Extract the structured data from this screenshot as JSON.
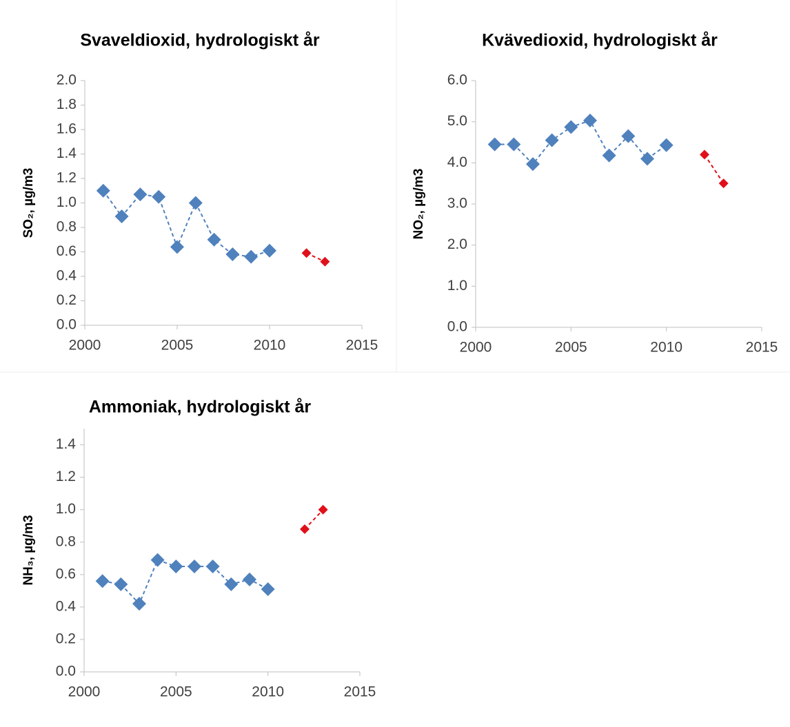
{
  "chart_data": [
    {
      "type": "line",
      "title": "Svaveldioxid, hydrologiskt år",
      "ylabel": "SO₂, µg/m3",
      "xlim": [
        2000,
        2015
      ],
      "xticks": [
        2000,
        2005,
        2010,
        2015
      ],
      "ylim": [
        0,
        2
      ],
      "yticks": [
        {
          "value": 0,
          "label": "0.0"
        },
        0.2,
        0.4,
        0.6,
        0.8,
        {
          "value": 1,
          "label": "1.0"
        },
        1.2,
        1.4,
        1.6,
        1.8,
        {
          "value": 2,
          "label": "2.0"
        }
      ],
      "grid": false,
      "series": [
        {
          "color": "#4f81bd",
          "x": [
            2001,
            2002,
            2003,
            2004,
            2005,
            2006,
            2007,
            2008,
            2009,
            2010
          ],
          "values": [
            1.1,
            0.89,
            1.07,
            1.05,
            0.64,
            1.0,
            0.7,
            0.58,
            0.56,
            0.61
          ]
        },
        {
          "color": "#e0101a",
          "x": [
            2012,
            2013
          ],
          "values": [
            0.59,
            0.52
          ]
        }
      ]
    },
    {
      "type": "line",
      "title": "Kvävedioxid, hydrologiskt år",
      "ylabel": "NO₂, µg/m3",
      "xlim": [
        2000,
        2015
      ],
      "xticks": [
        2000,
        2005,
        2010,
        2015
      ],
      "ylim": [
        0,
        6
      ],
      "yticks": [
        {
          "value": 0,
          "label": "0.0"
        },
        {
          "value": 1,
          "label": "1.0"
        },
        {
          "value": 2,
          "label": "2.0"
        },
        {
          "value": 3,
          "label": "3.0"
        },
        {
          "value": 4,
          "label": "4.0"
        },
        {
          "value": 5,
          "label": "5.0"
        },
        {
          "value": 6,
          "label": "6.0"
        }
      ],
      "grid": false,
      "series": [
        {
          "color": "#4f81bd",
          "x": [
            2001,
            2002,
            2003,
            2004,
            2005,
            2006,
            2007,
            2008,
            2009,
            2010
          ],
          "values": [
            4.45,
            4.45,
            3.97,
            4.55,
            4.87,
            5.03,
            4.18,
            4.65,
            4.1,
            4.43
          ]
        },
        {
          "color": "#e0101a",
          "x": [
            2012,
            2013
          ],
          "values": [
            4.2,
            3.5
          ]
        }
      ]
    },
    {
      "type": "line",
      "title": "Ammoniak, hydrologiskt år",
      "ylabel": "NH₃, µg/m3",
      "xlim": [
        2000,
        2015
      ],
      "xticks": [
        2000,
        2005,
        2010,
        2015
      ],
      "ylim": [
        0,
        1.5
      ],
      "yticks": [
        {
          "value": 0,
          "label": "0.0"
        },
        0.2,
        0.4,
        0.6,
        0.8,
        {
          "value": 1,
          "label": "1.0"
        },
        1.2,
        1.4
      ],
      "grid": false,
      "series": [
        {
          "color": "#4f81bd",
          "x": [
            2001,
            2002,
            2003,
            2004,
            2005,
            2006,
            2007,
            2008,
            2009,
            2010
          ],
          "values": [
            0.56,
            0.54,
            0.42,
            0.69,
            0.65,
            0.65,
            0.65,
            0.54,
            0.57,
            0.51
          ]
        },
        {
          "color": "#e0101a",
          "x": [
            2012,
            2013
          ],
          "values": [
            0.88,
            1.0
          ]
        }
      ]
    }
  ]
}
